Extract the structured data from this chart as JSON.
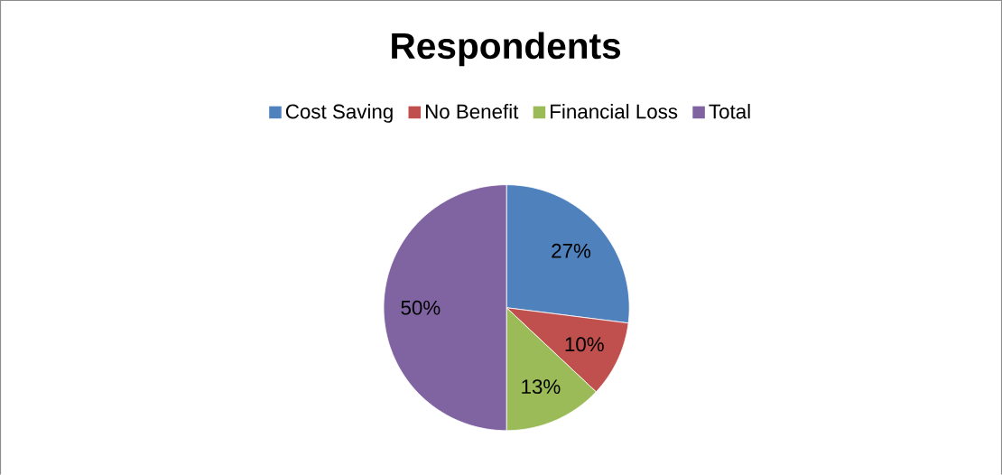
{
  "chart_data": {
    "type": "pie",
    "title": "Respondents",
    "categories": [
      "Cost Saving",
      "No Benefit",
      "Financial Loss",
      "Total"
    ],
    "values": [
      27,
      10,
      13,
      50
    ],
    "colors": [
      "#4f81bd",
      "#c0504d",
      "#9bbb59",
      "#8064a2"
    ],
    "value_labels": [
      "27%",
      "10%",
      "13%",
      "50%"
    ],
    "legend": "top"
  }
}
